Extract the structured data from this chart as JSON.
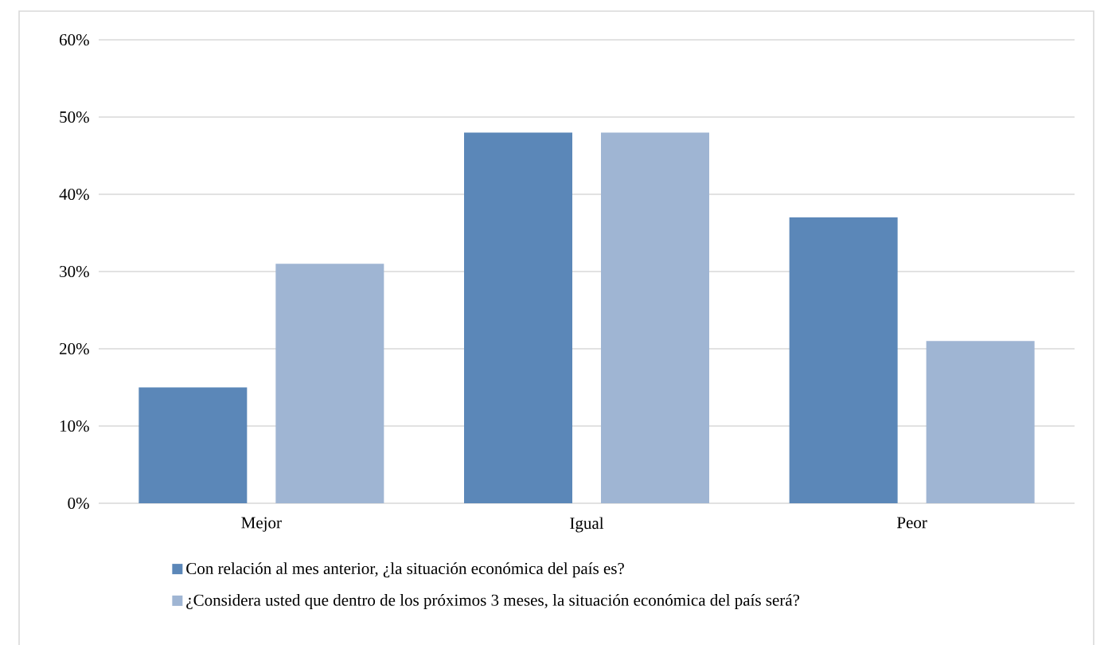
{
  "chart_data": {
    "type": "bar",
    "categories": [
      "Mejor",
      "Igual",
      "Peor"
    ],
    "series": [
      {
        "name": "Con relación al mes anterior, ¿la situación económica del país es?",
        "color": "#5b87b8",
        "values": [
          15,
          48,
          37
        ]
      },
      {
        "name": "¿Considera usted que dentro de los próximos 3 meses, la situación económica del país será?",
        "color": "#9fb5d3",
        "values": [
          31,
          48,
          21
        ]
      }
    ],
    "ylim": [
      0,
      60
    ],
    "yticks": [
      {
        "value": 0,
        "label": "0%"
      },
      {
        "value": 10,
        "label": "10%"
      },
      {
        "value": 20,
        "label": "20%"
      },
      {
        "value": 30,
        "label": "30%"
      },
      {
        "value": 40,
        "label": "40%"
      },
      {
        "value": 50,
        "label": "50%"
      },
      {
        "value": 60,
        "label": "60%"
      }
    ],
    "grid": "y",
    "legend": "bottom"
  }
}
